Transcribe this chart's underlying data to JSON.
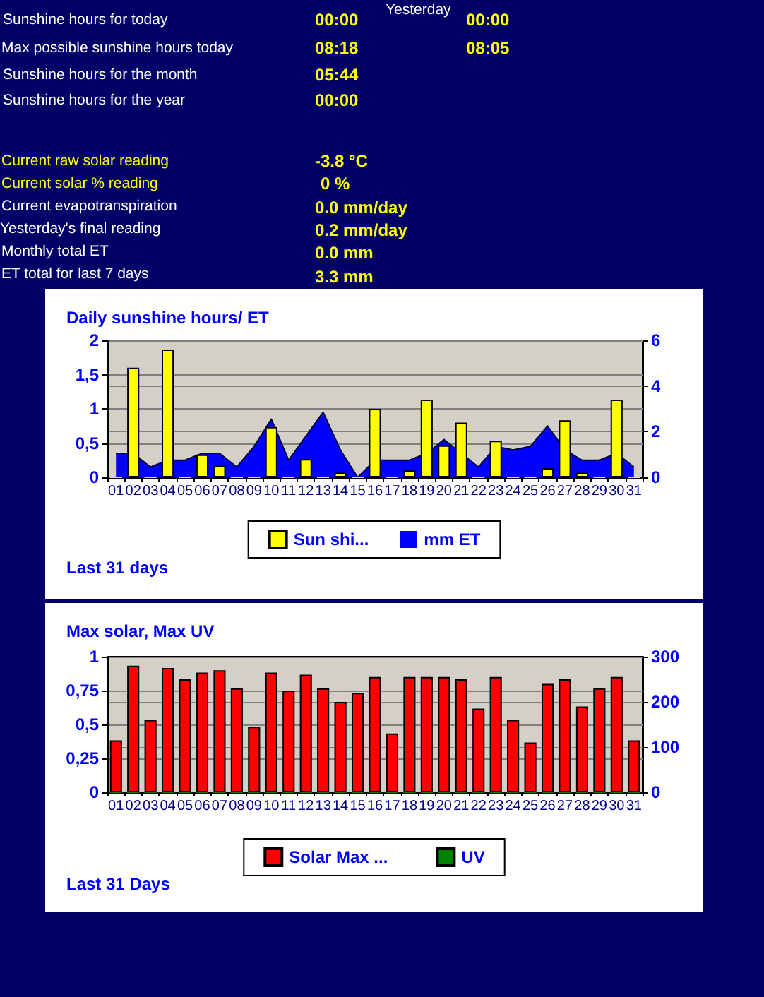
{
  "chart_data": [
    {
      "type": "other",
      "annotations": [
        "Sunshine hours for today",
        "00:00",
        "Yesterday",
        "00:00",
        "Max possible sunshine hours today",
        "08:18",
        "08:05",
        "Sunshine hours for the month",
        "05:44",
        "Sunshine hours for the year",
        "00:00",
        "Current raw solar reading",
        "-3.8 °C",
        "Current solar % reading",
        "0 %",
        "Current evapotranspiration",
        "0.0 mm/day",
        "Yesterday's final reading",
        "0.2 mm/day",
        "Monthly total ET",
        "0.0 mm",
        "ET total for last 7 days",
        "3.3 mm"
      ]
    },
    {
      "type": "bar",
      "title": "Daily sunshine hours/ ET",
      "categories": [
        "01",
        "02",
        "03",
        "04",
        "05",
        "06",
        "07",
        "08",
        "09",
        "10",
        "11",
        "12",
        "13",
        "14",
        "15",
        "16",
        "17",
        "18",
        "19",
        "20",
        "21",
        "22",
        "23",
        "24",
        "25",
        "26",
        "27",
        "28",
        "29",
        "30",
        "31"
      ],
      "series": [
        {
          "name": "Sun shi...",
          "color": "#ffff00",
          "axis": "y2",
          "values": [
            0,
            4.8,
            0,
            5.6,
            0,
            1.0,
            0.5,
            0,
            0,
            2.2,
            0,
            0.8,
            0,
            0.2,
            0,
            3.0,
            0,
            0.3,
            3.4,
            1.4,
            2.4,
            0,
            1.6,
            0,
            0,
            0.4,
            2.5,
            0.2,
            0,
            3.4,
            0
          ]
        },
        {
          "name": "mm ET",
          "type": "area",
          "color": "#0000ff",
          "values": [
            0.35,
            0.35,
            0.15,
            0.25,
            0.25,
            0.35,
            0.35,
            0.15,
            0.45,
            0.85,
            0.25,
            0.6,
            0.95,
            0.4,
            0,
            0.25,
            0.25,
            0.25,
            0.35,
            0.55,
            0.35,
            0.15,
            0.45,
            0.4,
            0.45,
            0.75,
            0.4,
            0.25,
            0.25,
            0.35,
            0.15
          ]
        }
      ],
      "ylim": [
        0,
        2
      ],
      "yticks": [
        0,
        {
          "value": 0.5,
          "label": "0,5"
        },
        1,
        {
          "value": 1.5,
          "label": "1,5"
        },
        2
      ],
      "y2lim": [
        0,
        6
      ],
      "y2ticks": [
        0,
        2,
        4,
        6
      ],
      "grid": "y",
      "legend": "bottom",
      "annotations": [
        "Last 31 days"
      ]
    },
    {
      "type": "bar",
      "title": "Max solar, Max UV",
      "categories": [
        "01",
        "02",
        "03",
        "04",
        "05",
        "06",
        "07",
        "08",
        "09",
        "10",
        "11",
        "12",
        "13",
        "14",
        "15",
        "16",
        "17",
        "18",
        "19",
        "20",
        "21",
        "22",
        "23",
        "24",
        "25",
        "26",
        "27",
        "28",
        "29",
        "30",
        "31"
      ],
      "series": [
        {
          "name": "Solar Max ...",
          "color": "#ff0000",
          "axis": "y2",
          "values": [
            115,
            280,
            160,
            275,
            250,
            265,
            270,
            230,
            145,
            265,
            225,
            260,
            230,
            200,
            220,
            255,
            130,
            255,
            255,
            255,
            250,
            185,
            255,
            160,
            110,
            240,
            250,
            190,
            230,
            255,
            115
          ]
        },
        {
          "name": "UV",
          "color": "#008000",
          "values": [
            0,
            0,
            0,
            0,
            0,
            0,
            0,
            0,
            0,
            0,
            0,
            0,
            0,
            0,
            0,
            0,
            0,
            0,
            0,
            0,
            0,
            0,
            0,
            0,
            0,
            0,
            0,
            0,
            0,
            0,
            0
          ]
        }
      ],
      "ylim": [
        0,
        1
      ],
      "yticks": [
        0,
        {
          "value": 0.25,
          "label": "0,25"
        },
        {
          "value": 0.5,
          "label": "0,5"
        },
        {
          "value": 0.75,
          "label": "0,75"
        },
        1
      ],
      "y2lim": [
        0,
        300
      ],
      "y2ticks": [
        0,
        100,
        200,
        300
      ],
      "grid": "y",
      "legend": "bottom",
      "annotations": [
        "Last 31 Days"
      ]
    }
  ]
}
